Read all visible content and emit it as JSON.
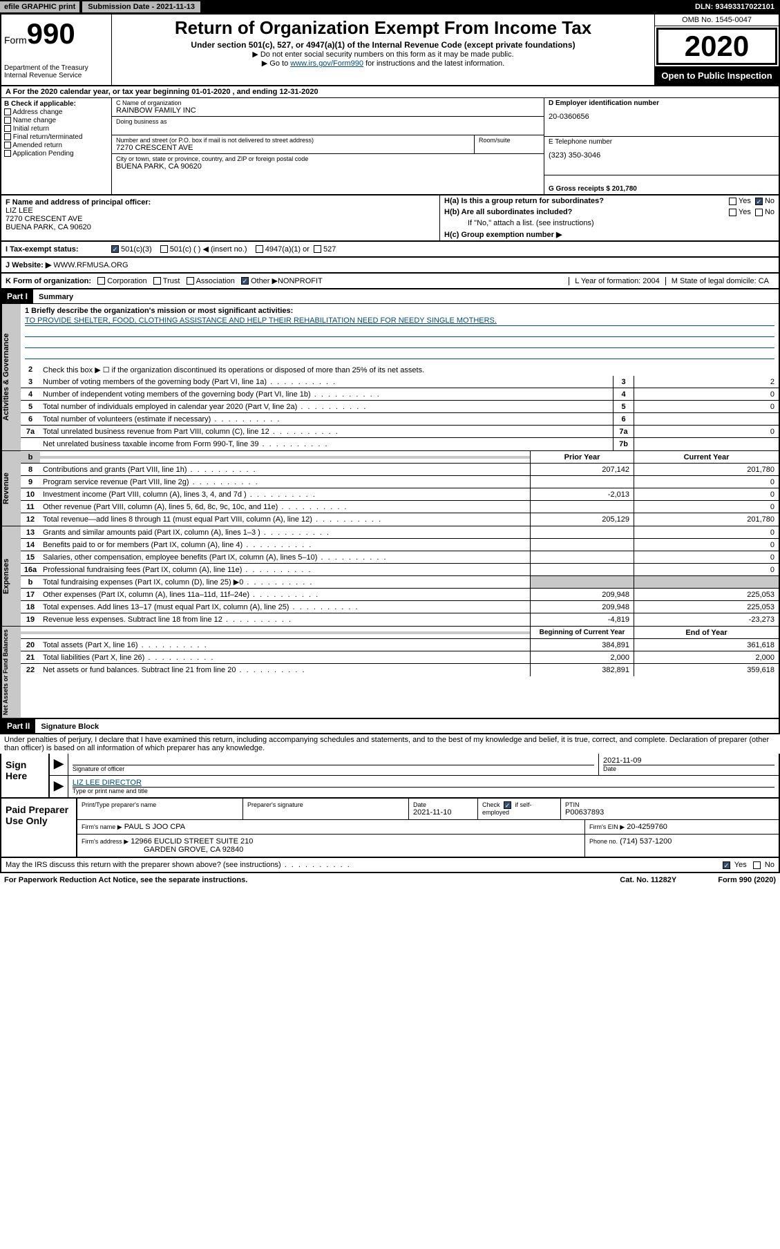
{
  "top": {
    "efile": "efile GRAPHIC print",
    "submission": "Submission Date - 2021-11-13",
    "dln": "DLN: 93493317022101"
  },
  "header": {
    "form_label": "Form",
    "form_num": "990",
    "dept": "Department of the Treasury Internal Revenue Service",
    "title": "Return of Organization Exempt From Income Tax",
    "sub1": "Under section 501(c), 527, or 4947(a)(1) of the Internal Revenue Code (except private foundations)",
    "sub2": "▶ Do not enter social security numbers on this form as it may be made public.",
    "sub3_pre": "▶ Go to ",
    "sub3_link": "www.irs.gov/Form990",
    "sub3_post": " for instructions and the latest information.",
    "omb": "OMB No. 1545-0047",
    "year": "2020",
    "open": "Open to Public Inspection"
  },
  "row_a": "A For the 2020 calendar year, or tax year beginning 01-01-2020    , and ending 12-31-2020",
  "b": {
    "label": "B Check if applicable:",
    "items": [
      "Address change",
      "Name change",
      "Initial return",
      "Final return/terminated",
      "Amended return",
      "Application Pending"
    ]
  },
  "c": {
    "name_label": "C Name of organization",
    "name": "RAINBOW FAMILY INC",
    "dba_label": "Doing business as",
    "street_label": "Number and street (or P.O. box if mail is not delivered to street address)",
    "room_label": "Room/suite",
    "street": "7270 CRESCENT AVE",
    "city_label": "City or town, state or province, country, and ZIP or foreign postal code",
    "city": "BUENA PARK, CA  90620"
  },
  "d": {
    "label": "D Employer identification number",
    "val": "20-0360656"
  },
  "e": {
    "label": "E Telephone number",
    "val": "(323) 350-3046"
  },
  "g": "G Gross receipts $ 201,780",
  "f": {
    "label": "F  Name and address of principal officer:",
    "name": "LIZ LEE",
    "street": "7270 CRESCENT AVE",
    "city": "BUENA PARK, CA  90620"
  },
  "h": {
    "a": "H(a)  Is this a group return for subordinates?",
    "b": "H(b)  Are all subordinates included?",
    "b_note": "If \"No,\" attach a list. (see instructions)",
    "c": "H(c)  Group exemption number ▶"
  },
  "i": {
    "label": "I  Tax-exempt status:",
    "o1": "501(c)(3)",
    "o2": "501(c) (  ) ◀ (insert no.)",
    "o3": "4947(a)(1) or",
    "o4": "527"
  },
  "j": {
    "label": "J  Website: ▶",
    "val": " WWW.RFMUSA.ORG"
  },
  "k": {
    "label": "K Form of organization:",
    "corp": "Corporation",
    "trust": "Trust",
    "assoc": "Association",
    "other": "Other ▶",
    "other_val": "NONPROFIT"
  },
  "l": "L Year of formation: 2004",
  "m": "M State of legal domicile: CA",
  "part1_hdr": "Part I",
  "part1_title": "Summary",
  "side": {
    "gov": "Activities & Governance",
    "rev": "Revenue",
    "exp": "Expenses",
    "net": "Net Assets or Fund Balances"
  },
  "mission": {
    "label": "1  Briefly describe the organization's mission or most significant activities:",
    "text": "TO PROVIDE SHELTER, FOOD, CLOTHING ASSISTANCE AND HELP THEIR REHABILITATION NEED FOR NEEDY SINGLE MOTHERS."
  },
  "l2": "Check this box ▶ ☐  if the organization discontinued its operations or disposed of more than 25% of its net assets.",
  "lines_gov": [
    {
      "n": "3",
      "d": "Number of voting members of the governing body (Part VI, line 1a)",
      "b": "3",
      "v": "2"
    },
    {
      "n": "4",
      "d": "Number of independent voting members of the governing body (Part VI, line 1b)",
      "b": "4",
      "v": "0"
    },
    {
      "n": "5",
      "d": "Total number of individuals employed in calendar year 2020 (Part V, line 2a)",
      "b": "5",
      "v": "0"
    },
    {
      "n": "6",
      "d": "Total number of volunteers (estimate if necessary)",
      "b": "6",
      "v": ""
    },
    {
      "n": "7a",
      "d": "Total unrelated business revenue from Part VIII, column (C), line 12",
      "b": "7a",
      "v": "0"
    },
    {
      "n": "",
      "d": "Net unrelated business taxable income from Form 990-T, line 39",
      "b": "7b",
      "v": ""
    }
  ],
  "col_hdr": {
    "b": "b",
    "py": "Prior Year",
    "cy": "Current Year"
  },
  "lines_rev": [
    {
      "n": "8",
      "d": "Contributions and grants (Part VIII, line 1h)",
      "py": "207,142",
      "cy": "201,780"
    },
    {
      "n": "9",
      "d": "Program service revenue (Part VIII, line 2g)",
      "py": "",
      "cy": "0"
    },
    {
      "n": "10",
      "d": "Investment income (Part VIII, column (A), lines 3, 4, and 7d )",
      "py": "-2,013",
      "cy": "0"
    },
    {
      "n": "11",
      "d": "Other revenue (Part VIII, column (A), lines 5, 6d, 8c, 9c, 10c, and 11e)",
      "py": "",
      "cy": "0"
    },
    {
      "n": "12",
      "d": "Total revenue—add lines 8 through 11 (must equal Part VIII, column (A), line 12)",
      "py": "205,129",
      "cy": "201,780"
    }
  ],
  "lines_exp": [
    {
      "n": "13",
      "d": "Grants and similar amounts paid (Part IX, column (A), lines 1–3 )",
      "py": "",
      "cy": "0"
    },
    {
      "n": "14",
      "d": "Benefits paid to or for members (Part IX, column (A), line 4)",
      "py": "",
      "cy": "0"
    },
    {
      "n": "15",
      "d": "Salaries, other compensation, employee benefits (Part IX, column (A), lines 5–10)",
      "py": "",
      "cy": "0"
    },
    {
      "n": "16a",
      "d": "Professional fundraising fees (Part IX, column (A), line 11e)",
      "py": "",
      "cy": "0"
    },
    {
      "n": "b",
      "d": "Total fundraising expenses (Part IX, column (D), line 25) ▶0",
      "py": "GRAY",
      "cy": "GRAY"
    },
    {
      "n": "17",
      "d": "Other expenses (Part IX, column (A), lines 11a–11d, 11f–24e)",
      "py": "209,948",
      "cy": "225,053"
    },
    {
      "n": "18",
      "d": "Total expenses. Add lines 13–17 (must equal Part IX, column (A), line 25)",
      "py": "209,948",
      "cy": "225,053"
    },
    {
      "n": "19",
      "d": "Revenue less expenses. Subtract line 18 from line 12",
      "py": "-4,819",
      "cy": "-23,273"
    }
  ],
  "col_hdr2": {
    "py": "Beginning of Current Year",
    "cy": "End of Year"
  },
  "lines_net": [
    {
      "n": "20",
      "d": "Total assets (Part X, line 16)",
      "py": "384,891",
      "cy": "361,618"
    },
    {
      "n": "21",
      "d": "Total liabilities (Part X, line 26)",
      "py": "2,000",
      "cy": "2,000"
    },
    {
      "n": "22",
      "d": "Net assets or fund balances. Subtract line 21 from line 20",
      "py": "382,891",
      "cy": "359,618"
    }
  ],
  "part2_hdr": "Part II",
  "part2_title": "Signature Block",
  "sig_intro": "Under penalties of perjury, I declare that I have examined this return, including accompanying schedules and statements, and to the best of my knowledge and belief, it is true, correct, and complete. Declaration of preparer (other than officer) is based on all information of which preparer has any knowledge.",
  "sign": {
    "here": "Sign Here",
    "sig_label": "Signature of officer",
    "date": "2021-11-09",
    "date_label": "Date",
    "name": "LIZ LEE DIRECTOR",
    "name_label": "Type or print name and title"
  },
  "paid": {
    "label": "Paid Preparer Use Only",
    "c1": "Print/Type preparer's name",
    "c2": "Preparer's signature",
    "c3": "Date",
    "c3v": "2021-11-10",
    "c4": "Check ☑ if self-employed",
    "c5": "PTIN",
    "c5v": "P00637893",
    "firm_label": "Firm's name    ▶",
    "firm": "PAUL S JOO CPA",
    "ein_label": "Firm's EIN ▶",
    "ein": "20-4259760",
    "addr_label": "Firm's address ▶",
    "addr1": "12966 EUCLID STREET SUITE 210",
    "addr2": "GARDEN GROVE, CA  92840",
    "phone_label": "Phone no.",
    "phone": "(714) 537-1200"
  },
  "discuss": "May the IRS discuss this return with the preparer shown above? (see instructions)",
  "footer": {
    "l": "For Paperwork Reduction Act Notice, see the separate instructions.",
    "c": "Cat. No. 11282Y",
    "r": "Form 990 (2020)"
  }
}
